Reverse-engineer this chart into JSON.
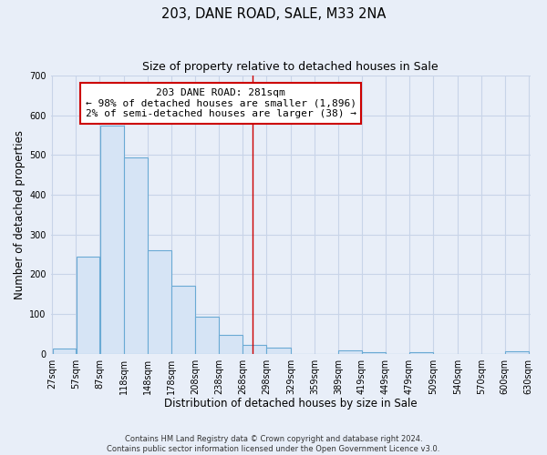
{
  "title": "203, DANE ROAD, SALE, M33 2NA",
  "subtitle": "Size of property relative to detached houses in Sale",
  "xlabel": "Distribution of detached houses by size in Sale",
  "ylabel": "Number of detached properties",
  "bar_color": "#d6e4f5",
  "bar_edge_color": "#6aaad4",
  "bin_edges": [
    27,
    57,
    87,
    118,
    148,
    178,
    208,
    238,
    268,
    298,
    329,
    359,
    389,
    419,
    449,
    479,
    509,
    540,
    570,
    600,
    630
  ],
  "bar_heights": [
    12,
    245,
    573,
    495,
    260,
    170,
    93,
    48,
    22,
    14,
    0,
    0,
    8,
    3,
    0,
    3,
    0,
    0,
    0,
    5
  ],
  "tick_labels": [
    "27sqm",
    "57sqm",
    "87sqm",
    "118sqm",
    "148sqm",
    "178sqm",
    "208sqm",
    "238sqm",
    "268sqm",
    "298sqm",
    "329sqm",
    "359sqm",
    "389sqm",
    "419sqm",
    "449sqm",
    "479sqm",
    "509sqm",
    "540sqm",
    "570sqm",
    "600sqm",
    "630sqm"
  ],
  "vline_x": 281,
  "vline_color": "#cc0000",
  "annotation_line1": "203 DANE ROAD: 281sqm",
  "annotation_line2": "← 98% of detached houses are smaller (1,896)",
  "annotation_line3": "2% of semi-detached houses are larger (38) →",
  "ylim": [
    0,
    700
  ],
  "yticks": [
    0,
    100,
    200,
    300,
    400,
    500,
    600,
    700
  ],
  "background_color": "#e8eef8",
  "grid_color": "#c8d4e8",
  "footer_text": "Contains HM Land Registry data © Crown copyright and database right 2024.\nContains public sector information licensed under the Open Government Licence v3.0.",
  "title_fontsize": 10.5,
  "subtitle_fontsize": 9,
  "xlabel_fontsize": 8.5,
  "ylabel_fontsize": 8.5,
  "tick_fontsize": 7,
  "footer_fontsize": 6,
  "annot_fontsize": 8
}
